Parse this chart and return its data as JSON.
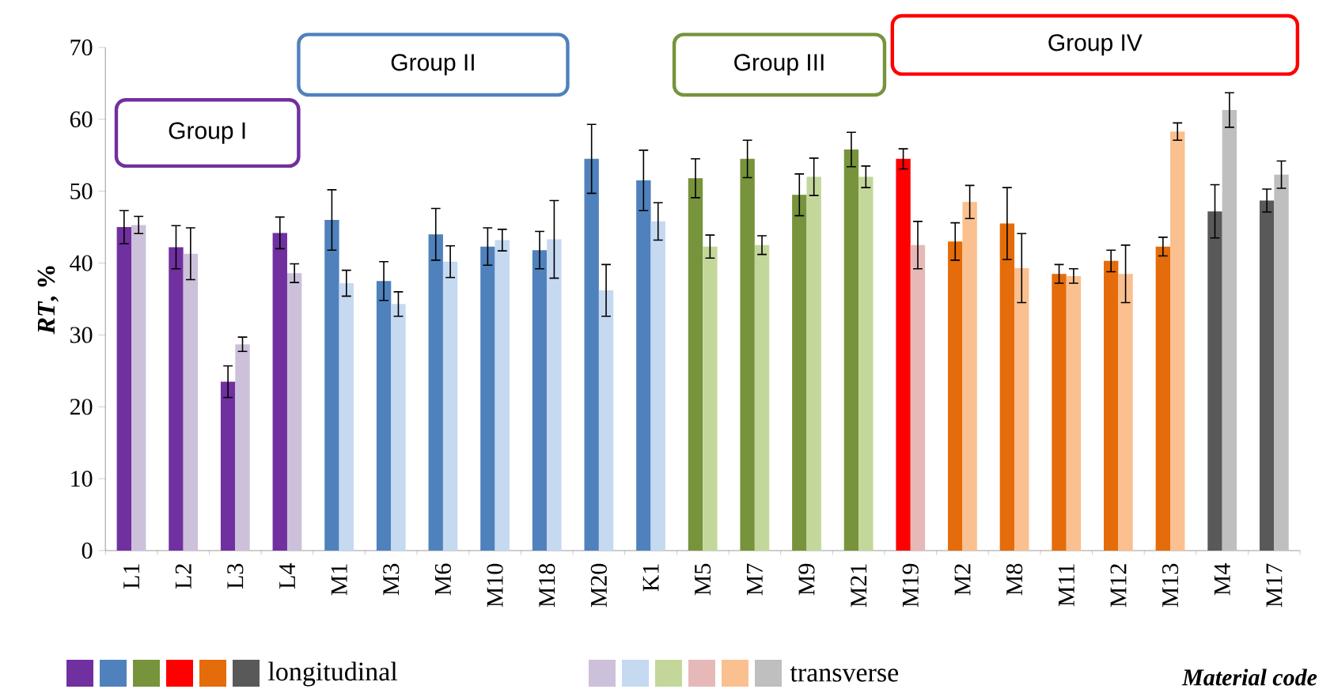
{
  "chart_data": {
    "type": "bar",
    "categories": [
      "L1",
      "L2",
      "L3",
      "L4",
      "M1",
      "M3",
      "M6",
      "M10",
      "M18",
      "M20",
      "K1",
      "M5",
      "M7",
      "M9",
      "M21",
      "M19",
      "M2",
      "M8",
      "M11",
      "M12",
      "M13",
      "M4",
      "M17"
    ],
    "series": [
      {
        "name": "longitudinal",
        "colors": [
          "#7030a0",
          "#7030a0",
          "#7030a0",
          "#7030a0",
          "#4f81bd",
          "#4f81bd",
          "#4f81bd",
          "#4f81bd",
          "#4f81bd",
          "#4f81bd",
          "#4f81bd",
          "#77933c",
          "#77933c",
          "#77933c",
          "#77933c",
          "#ff0000",
          "#e46c0a",
          "#e46c0a",
          "#e46c0a",
          "#e46c0a",
          "#e46c0a",
          "#595959",
          "#595959"
        ],
        "values": [
          45,
          42.2,
          23.5,
          44.2,
          46,
          37.5,
          44,
          42.3,
          41.8,
          54.5,
          51.5,
          51.8,
          54.5,
          49.5,
          55.8,
          54.5,
          43,
          45.5,
          38.5,
          40.3,
          42.3,
          47.2,
          48.7
        ],
        "errors": [
          2.3,
          3,
          2.2,
          2.2,
          4.2,
          2.7,
          3.6,
          2.6,
          2.6,
          4.8,
          4.2,
          2.7,
          2.6,
          2.9,
          2.4,
          1.4,
          2.6,
          5,
          1.3,
          1.5,
          1.3,
          3.7,
          1.6
        ]
      },
      {
        "name": "transverse",
        "colors": [
          "#ccc0da",
          "#ccc0da",
          "#ccc0da",
          "#ccc0da",
          "#c5d9f1",
          "#c5d9f1",
          "#c5d9f1",
          "#c5d9f1",
          "#c5d9f1",
          "#c5d9f1",
          "#c5d9f1",
          "#c4d79b",
          "#c4d79b",
          "#c4d79b",
          "#c4d79b",
          "#e6b9b8",
          "#fac090",
          "#fac090",
          "#fac090",
          "#fac090",
          "#fac090",
          "#bfbfbf",
          "#bfbfbf"
        ],
        "values": [
          45.3,
          41.3,
          28.7,
          38.6,
          37.2,
          34.3,
          40.2,
          43.2,
          43.3,
          36.2,
          45.8,
          42.3,
          42.5,
          52,
          52,
          42.5,
          48.5,
          39.3,
          38.2,
          38.5,
          58.3,
          61.3,
          52.3
        ],
        "errors": [
          1.2,
          3.6,
          1,
          1.3,
          1.8,
          1.7,
          2.2,
          1.5,
          5.4,
          3.6,
          2.6,
          1.6,
          1.3,
          2.6,
          1.5,
          3.3,
          2.3,
          4.8,
          1,
          4,
          1.2,
          2.4,
          1.9
        ]
      }
    ],
    "ylabel": "*RT*, %",
    "xlabel": "Material code",
    "ylim": [
      0,
      70
    ],
    "yticks": [
      0,
      10,
      20,
      30,
      40,
      50,
      60,
      70
    ],
    "legend": "bottom",
    "annotations": [
      "Group I",
      "Group II",
      "Group III",
      "Group IV"
    ]
  }
}
